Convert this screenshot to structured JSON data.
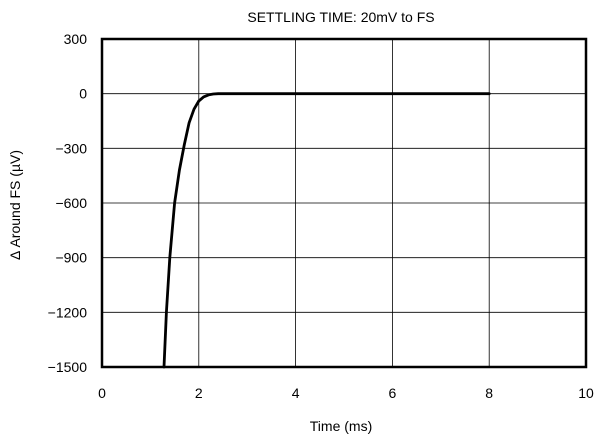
{
  "chart_data": {
    "type": "line",
    "title": "SETTLING TIME: 20mV to FS",
    "xlabel": "Time (ms)",
    "ylabel": "Δ Around FS (µV)",
    "xlim": [
      0,
      10
    ],
    "ylim": [
      -1500,
      300
    ],
    "x_ticks": [
      0,
      2,
      4,
      6,
      8,
      10
    ],
    "y_ticks": [
      300,
      0,
      -300,
      -600,
      -900,
      -1200,
      -1500
    ],
    "x_tick_labels": [
      "0",
      "2",
      "4",
      "6",
      "8",
      "10"
    ],
    "y_tick_labels": [
      "300",
      "0",
      "−300",
      "−600",
      "−900",
      "−1200",
      "−1500"
    ],
    "grid": true,
    "legend": "none",
    "line_color": "#000000",
    "series": [
      {
        "x": [
          1.28,
          1.33,
          1.4,
          1.5,
          1.6,
          1.7,
          1.8,
          1.9,
          2.0,
          2.1,
          2.2,
          2.3,
          2.4,
          2.5,
          3.0,
          4.0,
          5.0,
          6.0,
          7.0,
          8.0
        ],
        "values": [
          -1500,
          -1200,
          -900,
          -600,
          -420,
          -280,
          -160,
          -85,
          -40,
          -18,
          -7,
          -2,
          0,
          0,
          0,
          0,
          0,
          0,
          0,
          0
        ]
      }
    ]
  }
}
